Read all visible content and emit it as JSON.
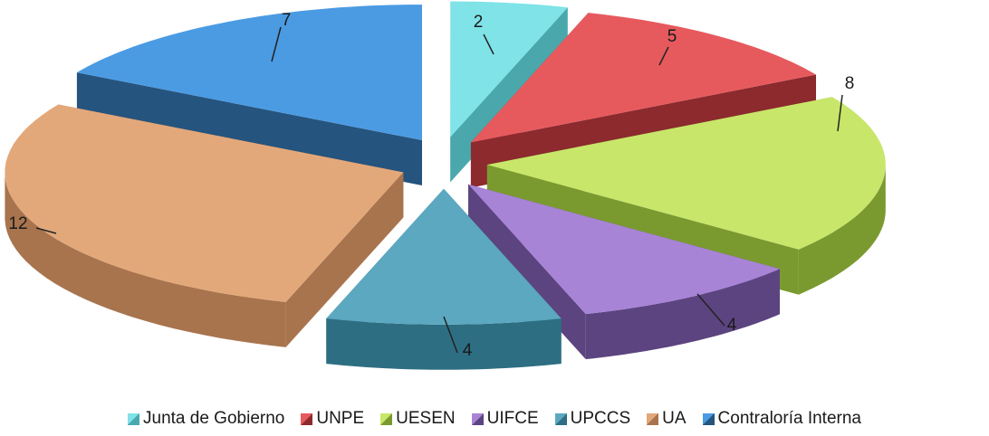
{
  "chart_data": {
    "type": "pie",
    "variant": "3d-exploded",
    "categories": [
      "Junta de Gobierno",
      "UNPE",
      "UESEN",
      "UIFCE",
      "UPCCS",
      "UA",
      "Contraloría Interna"
    ],
    "values": [
      2,
      5,
      8,
      4,
      4,
      12,
      7
    ],
    "data_labels": [
      "2",
      "5",
      "8",
      "4",
      "4",
      "12",
      "7"
    ],
    "colors": [
      "#7fe3e8",
      "#e65a5e",
      "#c8e66a",
      "#a884d6",
      "#5ba8c0",
      "#e3a87a",
      "#4b9be3"
    ],
    "side_colors": [
      "#4aa8ad",
      "#8c2a2e",
      "#7a9a30",
      "#5c4480",
      "#2e6e82",
      "#a8744e",
      "#25547e"
    ],
    "legend": "bottom",
    "title": ""
  }
}
